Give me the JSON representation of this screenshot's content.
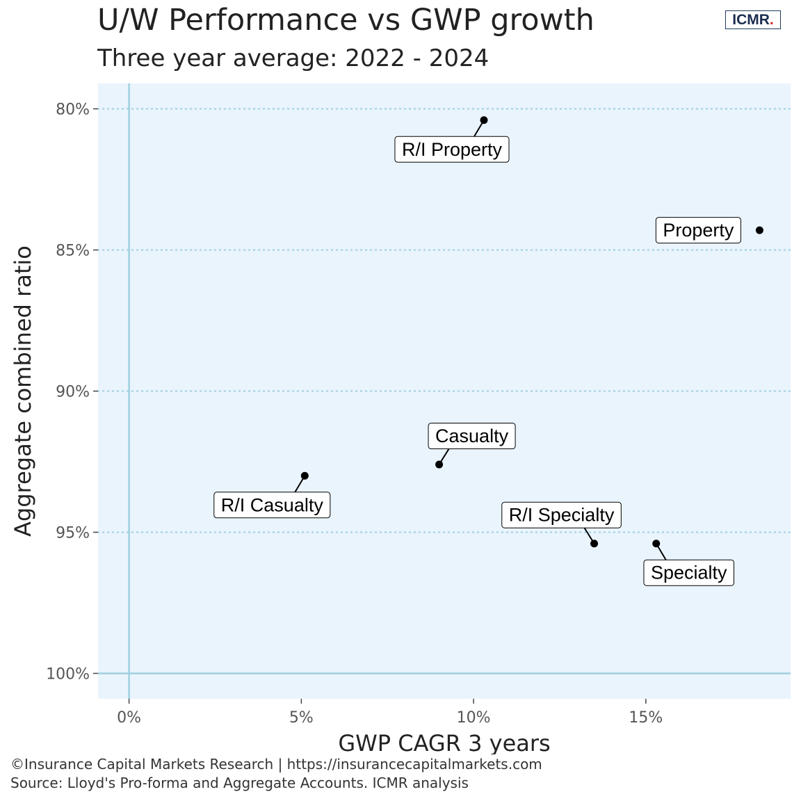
{
  "header": {
    "title": "U/W Performance vs GWP growth",
    "subtitle": "Three year average: 2022 - 2024",
    "logo_text": "ICMR",
    "logo_dot": "."
  },
  "footer": {
    "line1": "©Insurance Capital Markets Research | https://insurancecapitalmarkets.com",
    "line2": "Source: Lloyd's Pro-forma and Aggregate Accounts. ICMR analysis"
  },
  "colors": {
    "panel_background": "#eaf4fd",
    "gridline": "#a9d5e3",
    "zero_line": "#9fcfe0",
    "point": "#000000",
    "logo_accent": "#d62020"
  },
  "chart_data": {
    "type": "scatter",
    "title": "U/W Performance vs GWP growth",
    "subtitle": "Three year average: 2022 - 2024",
    "xlabel": "GWP CAGR 3 years",
    "ylabel": "Aggregate combined ratio",
    "x_unit": "%",
    "y_unit": "%",
    "xlim": [
      -0.9,
      19.2
    ],
    "ylim": [
      100.9,
      79.1
    ],
    "y_reversed": true,
    "x_ticks": [
      0,
      5,
      10,
      15
    ],
    "x_tick_labels": [
      "0%",
      "5%",
      "10%",
      "15%"
    ],
    "y_ticks": [
      80,
      85,
      90,
      95,
      100
    ],
    "y_tick_labels": [
      "80%",
      "85%",
      "90%",
      "95%",
      "100%"
    ],
    "grid": "dotted horizontal",
    "points": [
      {
        "label": "R/I Property",
        "x": 10.3,
        "y": 80.4
      },
      {
        "label": "Property",
        "x": 18.3,
        "y": 84.3
      },
      {
        "label": "Casualty",
        "x": 9.0,
        "y": 92.6
      },
      {
        "label": "R/I Casualty",
        "x": 5.1,
        "y": 93.0
      },
      {
        "label": "R/I Specialty",
        "x": 13.5,
        "y": 95.4
      },
      {
        "label": "Specialty",
        "x": 15.3,
        "y": 95.4
      }
    ]
  }
}
